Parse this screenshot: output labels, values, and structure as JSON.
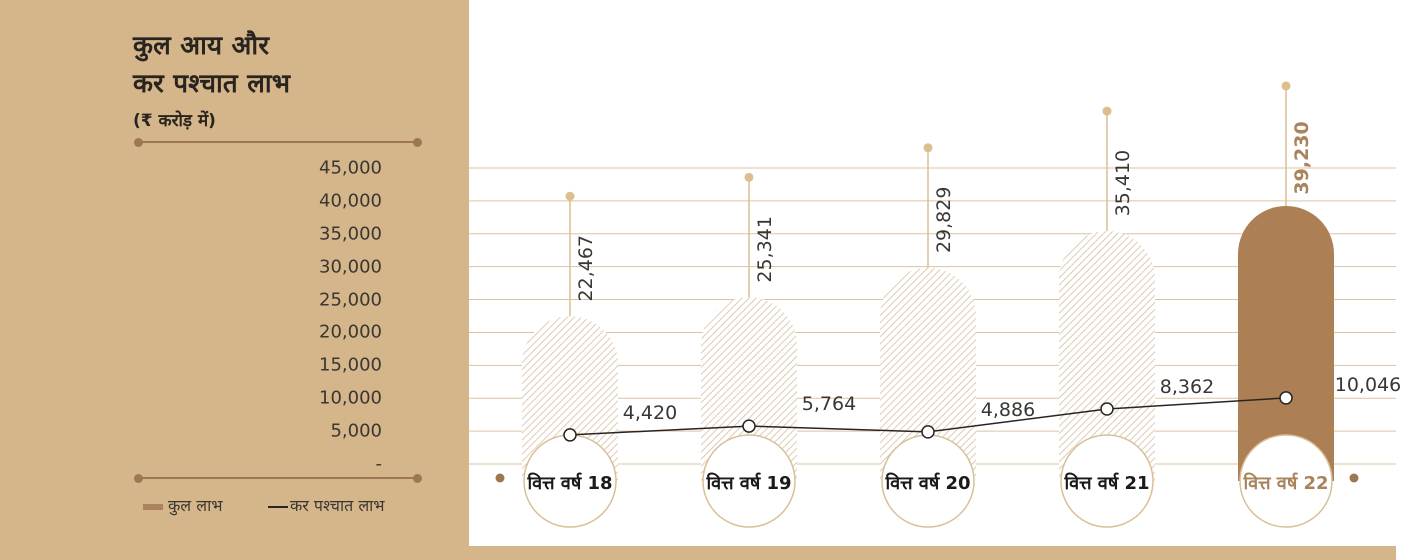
{
  "chart_data": {
    "type": "bar",
    "title": "कुल आय और",
    "title_line2": "कर पश्चात लाभ",
    "units": "(₹ करोड़ में)",
    "categories": [
      "वित्त वर्ष 18",
      "वित्त वर्ष 19",
      "वित्त वर्ष 20",
      "वित्त वर्ष 21",
      "वित्त वर्ष 22"
    ],
    "series": [
      {
        "name": "कुल  लाभ",
        "type": "bar",
        "values": [
          22467,
          25341,
          29829,
          35410,
          39230
        ],
        "labels": [
          "22,467",
          "25,341",
          "29,829",
          "35,410",
          "39,230"
        ]
      },
      {
        "name": "कर  पश्चात  लाभ",
        "type": "line",
        "values": [
          4420,
          5764,
          4886,
          8362,
          10046
        ],
        "labels": [
          "4,420",
          "5,764",
          "4,886",
          "8,362",
          "10,046"
        ]
      }
    ],
    "yticks": [
      "45,000",
      "40,000",
      "35,000",
      "30,000",
      "25,000",
      "20,000",
      "15,000",
      "10,000",
      "5,000",
      "-"
    ],
    "ylim": [
      0,
      45000
    ],
    "grid": true,
    "legend_position": "bottom-left",
    "highlight_index": 4,
    "colors": {
      "panel": "#d4b68a",
      "bar_hatch": "#d9c2a8",
      "bar_highlight": "#ad7f55",
      "grid": "#dcc3a2",
      "line": "#2a2420",
      "accent_text": "#a9835c"
    }
  }
}
